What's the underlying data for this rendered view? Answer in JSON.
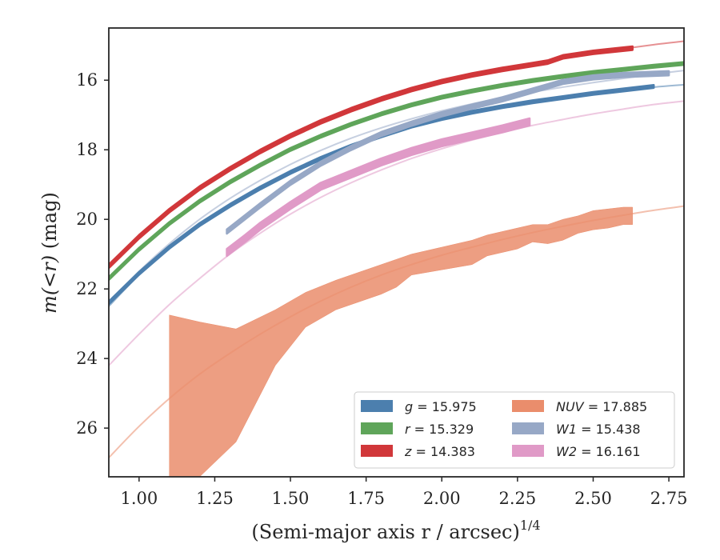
{
  "chart_data": {
    "type": "line",
    "xlabel": "(Semi-major axis r / arcsec)",
    "xlabel_exponent": "1/4",
    "ylabel_prefix": "m(<r)",
    "ylabel_suffix": " (mag)",
    "xlim": [
      0.9,
      2.8
    ],
    "ylim": [
      27.4,
      14.5
    ],
    "y_inverted": true,
    "grid": false,
    "legend_position": "lower-right",
    "xticks": [
      {
        "value": 1.0,
        "label": "1.00"
      },
      {
        "value": 1.25,
        "label": "1.25"
      },
      {
        "value": 1.5,
        "label": "1.50"
      },
      {
        "value": 1.75,
        "label": "1.75"
      },
      {
        "value": 2.0,
        "label": "2.00"
      },
      {
        "value": 2.25,
        "label": "2.25"
      },
      {
        "value": 2.5,
        "label": "2.50"
      },
      {
        "value": 2.75,
        "label": "2.75"
      }
    ],
    "yticks": [
      {
        "value": 16,
        "label": "16"
      },
      {
        "value": 18,
        "label": "18"
      },
      {
        "value": 20,
        "label": "20"
      },
      {
        "value": 22,
        "label": "22"
      },
      {
        "value": 24,
        "label": "24"
      },
      {
        "value": 26,
        "label": "26"
      }
    ],
    "series": [
      {
        "band": "g",
        "value": "15.975",
        "color": "#4c7fae",
        "model": {
          "x": [
            0.9,
            1.0,
            1.1,
            1.2,
            1.3,
            1.4,
            1.5,
            1.6,
            1.7,
            1.8,
            1.9,
            2.0,
            2.1,
            2.2,
            2.3,
            2.4,
            2.5,
            2.6,
            2.7,
            2.8
          ],
          "y": [
            22.5,
            21.6,
            20.85,
            20.2,
            19.65,
            19.15,
            18.7,
            18.3,
            17.95,
            17.63,
            17.35,
            17.12,
            16.93,
            16.77,
            16.63,
            16.5,
            16.39,
            16.29,
            16.2,
            16.13
          ]
        },
        "band_x": [
          0.9,
          1.0,
          1.1,
          1.2,
          1.3,
          1.4,
          1.5,
          1.6,
          1.7,
          1.8,
          1.9,
          2.0,
          2.1,
          2.2,
          2.3,
          2.4,
          2.5,
          2.6,
          2.7
        ],
        "band_y": [
          22.4,
          21.55,
          20.8,
          20.15,
          19.6,
          19.1,
          18.65,
          18.25,
          17.9,
          17.6,
          17.32,
          17.1,
          16.92,
          16.76,
          16.62,
          16.5,
          16.38,
          16.28,
          16.18
        ],
        "band_err": 0.04
      },
      {
        "band": "r",
        "value": "15.329",
        "color": "#5fa55a",
        "model": {
          "x": [
            0.9,
            1.0,
            1.1,
            1.2,
            1.3,
            1.4,
            1.5,
            1.6,
            1.7,
            1.8,
            1.9,
            2.0,
            2.1,
            2.2,
            2.3,
            2.4,
            2.5,
            2.6,
            2.7,
            2.8
          ],
          "y": [
            21.75,
            20.9,
            20.15,
            19.5,
            18.95,
            18.45,
            18.0,
            17.62,
            17.28,
            16.98,
            16.72,
            16.5,
            16.32,
            16.16,
            16.02,
            15.9,
            15.79,
            15.7,
            15.61,
            15.53
          ]
        },
        "band_x": [
          0.9,
          1.0,
          1.1,
          1.2,
          1.3,
          1.4,
          1.5,
          1.6,
          1.7,
          1.8,
          1.9,
          2.0,
          2.1,
          2.2,
          2.3,
          2.4,
          2.5,
          2.6,
          2.7,
          2.8
        ],
        "band_y": [
          21.7,
          20.86,
          20.12,
          19.48,
          18.93,
          18.44,
          17.99,
          17.61,
          17.27,
          16.97,
          16.71,
          16.49,
          16.31,
          16.15,
          16.01,
          15.89,
          15.78,
          15.69,
          15.6,
          15.52
        ],
        "band_err": 0.04
      },
      {
        "band": "z",
        "value": "14.383",
        "color": "#d1373a",
        "model": {
          "x": [
            0.9,
            1.0,
            1.1,
            1.2,
            1.3,
            1.4,
            1.5,
            1.6,
            1.7,
            1.8,
            1.9,
            2.0,
            2.1,
            2.2,
            2.3,
            2.4,
            2.5,
            2.6,
            2.7,
            2.8
          ],
          "y": [
            21.35,
            20.5,
            19.75,
            19.1,
            18.55,
            18.05,
            17.6,
            17.2,
            16.85,
            16.54,
            16.27,
            16.04,
            15.84,
            15.67,
            15.52,
            15.38,
            15.24,
            15.1,
            14.98,
            14.88
          ]
        },
        "band_x": [
          0.9,
          1.0,
          1.1,
          1.2,
          1.3,
          1.4,
          1.5,
          1.6,
          1.7,
          1.8,
          1.9,
          2.0,
          2.1,
          2.2,
          2.3,
          2.35,
          2.4,
          2.5,
          2.63
        ],
        "band_y": [
          21.35,
          20.5,
          19.75,
          19.1,
          18.55,
          18.05,
          17.6,
          17.2,
          16.85,
          16.54,
          16.27,
          16.04,
          15.85,
          15.69,
          15.55,
          15.48,
          15.33,
          15.2,
          15.08
        ],
        "band_err": 0.05
      },
      {
        "band": "NUV",
        "value": "17.885",
        "color": "#ea8d6c",
        "model": {
          "x": [
            0.9,
            1.0,
            1.1,
            1.2,
            1.3,
            1.4,
            1.5,
            1.6,
            1.7,
            1.8,
            1.9,
            2.0,
            2.1,
            2.2,
            2.3,
            2.4,
            2.5,
            2.6,
            2.7,
            2.8
          ],
          "y": [
            26.85,
            25.95,
            25.15,
            24.45,
            23.85,
            23.3,
            22.8,
            22.35,
            21.95,
            21.6,
            21.3,
            21.03,
            20.8,
            20.58,
            20.38,
            20.2,
            20.03,
            19.88,
            19.74,
            19.62
          ]
        },
        "band_x": [
          1.1,
          1.2,
          1.32,
          1.45,
          1.55,
          1.65,
          1.8,
          1.85,
          1.9,
          2.0,
          2.1,
          2.15,
          2.25,
          2.3,
          2.35,
          2.4,
          2.45,
          2.5,
          2.55,
          2.6,
          2.63
        ],
        "band_lo": [
          27.4,
          27.4,
          26.4,
          24.2,
          23.1,
          22.6,
          22.15,
          21.95,
          21.6,
          21.45,
          21.3,
          21.05,
          20.85,
          20.65,
          20.7,
          20.6,
          20.4,
          20.3,
          20.25,
          20.15,
          20.15
        ],
        "band_hi": [
          22.75,
          22.95,
          23.15,
          22.6,
          22.1,
          21.75,
          21.3,
          21.15,
          21.0,
          20.8,
          20.6,
          20.45,
          20.25,
          20.15,
          20.15,
          20.0,
          19.9,
          19.75,
          19.7,
          19.65,
          19.65
        ]
      },
      {
        "band": "W1",
        "value": "15.438",
        "color": "#97a8c6",
        "model": {
          "x": [
            0.9,
            1.0,
            1.1,
            1.2,
            1.3,
            1.4,
            1.5,
            1.6,
            1.7,
            1.8,
            1.9,
            2.0,
            2.1,
            2.2,
            2.3,
            2.4,
            2.5,
            2.6,
            2.7,
            2.8
          ],
          "y": [
            22.45,
            21.5,
            20.7,
            20.0,
            19.4,
            18.88,
            18.42,
            18.02,
            17.67,
            17.37,
            17.11,
            16.88,
            16.68,
            16.5,
            16.34,
            16.2,
            16.07,
            15.95,
            15.83,
            15.72
          ]
        },
        "band_x": [
          1.29,
          1.4,
          1.5,
          1.6,
          1.7,
          1.8,
          1.9,
          2.0,
          2.1,
          2.2,
          2.3,
          2.4,
          2.5,
          2.6,
          2.75
        ],
        "band_y": [
          20.35,
          19.6,
          18.95,
          18.4,
          17.95,
          17.55,
          17.25,
          16.98,
          16.76,
          16.55,
          16.3,
          16.05,
          15.92,
          15.85,
          15.8
        ],
        "band_err": 0.06
      },
      {
        "band": "W2",
        "value": "16.161",
        "color": "#e09ac7",
        "model": {
          "x": [
            0.9,
            1.0,
            1.1,
            1.2,
            1.3,
            1.4,
            1.5,
            1.6,
            1.7,
            1.8,
            1.9,
            2.0,
            2.1,
            2.2,
            2.3,
            2.4,
            2.5,
            2.6,
            2.7,
            2.8
          ],
          "y": [
            24.2,
            23.3,
            22.45,
            21.7,
            21.0,
            20.4,
            19.85,
            19.37,
            18.95,
            18.58,
            18.25,
            17.97,
            17.72,
            17.5,
            17.3,
            17.13,
            16.97,
            16.83,
            16.7,
            16.6
          ]
        },
        "band_x": [
          1.29,
          1.35,
          1.4,
          1.5,
          1.6,
          1.7,
          1.8,
          1.9,
          2.0,
          2.1,
          2.2,
          2.29
        ],
        "band_y": [
          20.95,
          20.55,
          20.2,
          19.6,
          19.05,
          18.7,
          18.35,
          18.05,
          17.8,
          17.6,
          17.4,
          17.2
        ],
        "band_err": 0.1
      }
    ]
  }
}
